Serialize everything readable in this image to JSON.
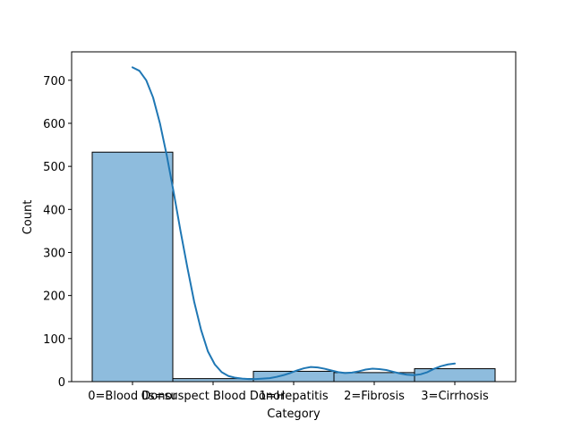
{
  "chart_data": {
    "type": "bar",
    "xlabel": "Category",
    "ylabel": "Count",
    "categories": [
      "0=Blood Donor",
      "0s=suspect Blood Donor",
      "1=Hepatitis",
      "2=Fibrosis",
      "3=Cirrhosis"
    ],
    "values": [
      533,
      7,
      24,
      21,
      30
    ],
    "kde_values": [
      730,
      722,
      700,
      660,
      600,
      525,
      440,
      350,
      265,
      185,
      120,
      70,
      40,
      22,
      13,
      9,
      7,
      6,
      6,
      7,
      8,
      11,
      15,
      20,
      26,
      31,
      34,
      33,
      30,
      26,
      22,
      20,
      21,
      24,
      28,
      30,
      29,
      27,
      23,
      19,
      16,
      15,
      17,
      22,
      30,
      36,
      40,
      42
    ],
    "ylim": [
      0,
      766
    ],
    "yticks": [
      0,
      100,
      200,
      300,
      400,
      500,
      600,
      700
    ],
    "grid": false,
    "legend": "none",
    "colors": {
      "bar_fill": "#8ebcdd",
      "bar_edge": "#000000",
      "kde_line": "#1f77b4",
      "axes": "#000000"
    }
  }
}
